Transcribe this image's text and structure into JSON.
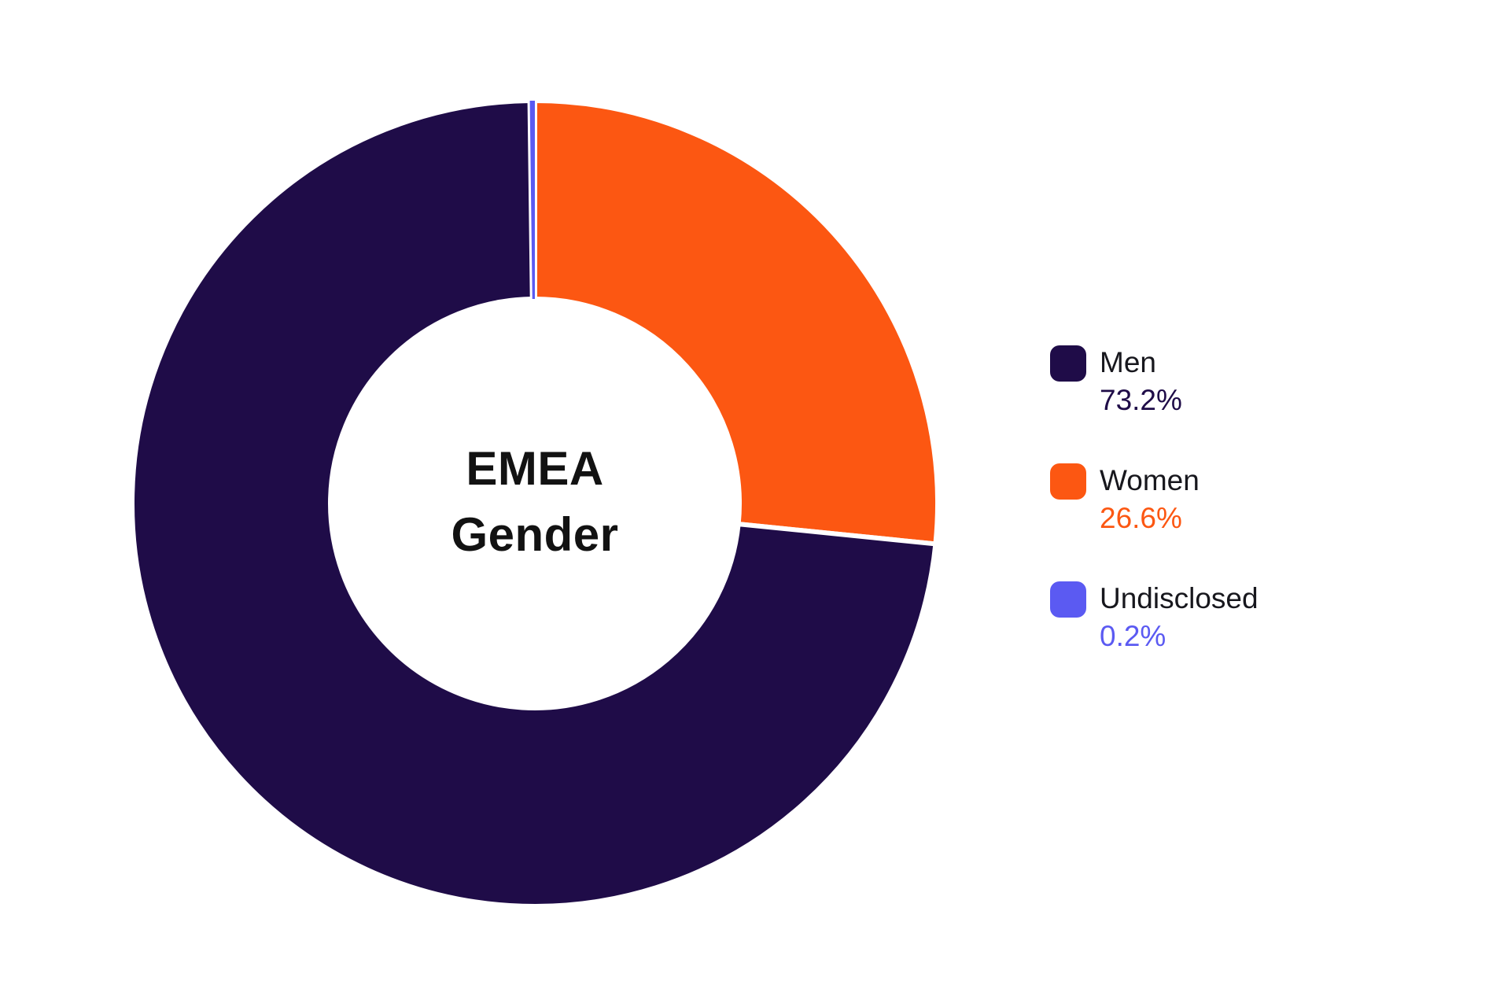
{
  "chart_data": {
    "type": "pie",
    "variant": "donut",
    "title": "EMEA Gender",
    "center_label_lines": [
      "EMEA",
      "Gender"
    ],
    "slices": [
      {
        "label": "Men",
        "value": 73.2,
        "display_value": "73.2%",
        "color": "#1F0C48"
      },
      {
        "label": "Women",
        "value": 26.6,
        "display_value": "26.6%",
        "color": "#FC5712"
      },
      {
        "label": "Undisclosed",
        "value": 0.2,
        "display_value": "0.2%",
        "color": "#5B5AF2"
      }
    ],
    "order_from_top_clockwise": [
      "Women",
      "Men",
      "Undisclosed"
    ],
    "legend_position": "right",
    "legend_label_color": "#17171D",
    "center_label_color": "#121212",
    "slice_gap_color": "#FFFFFF",
    "background_color": "#FFFFFF"
  }
}
